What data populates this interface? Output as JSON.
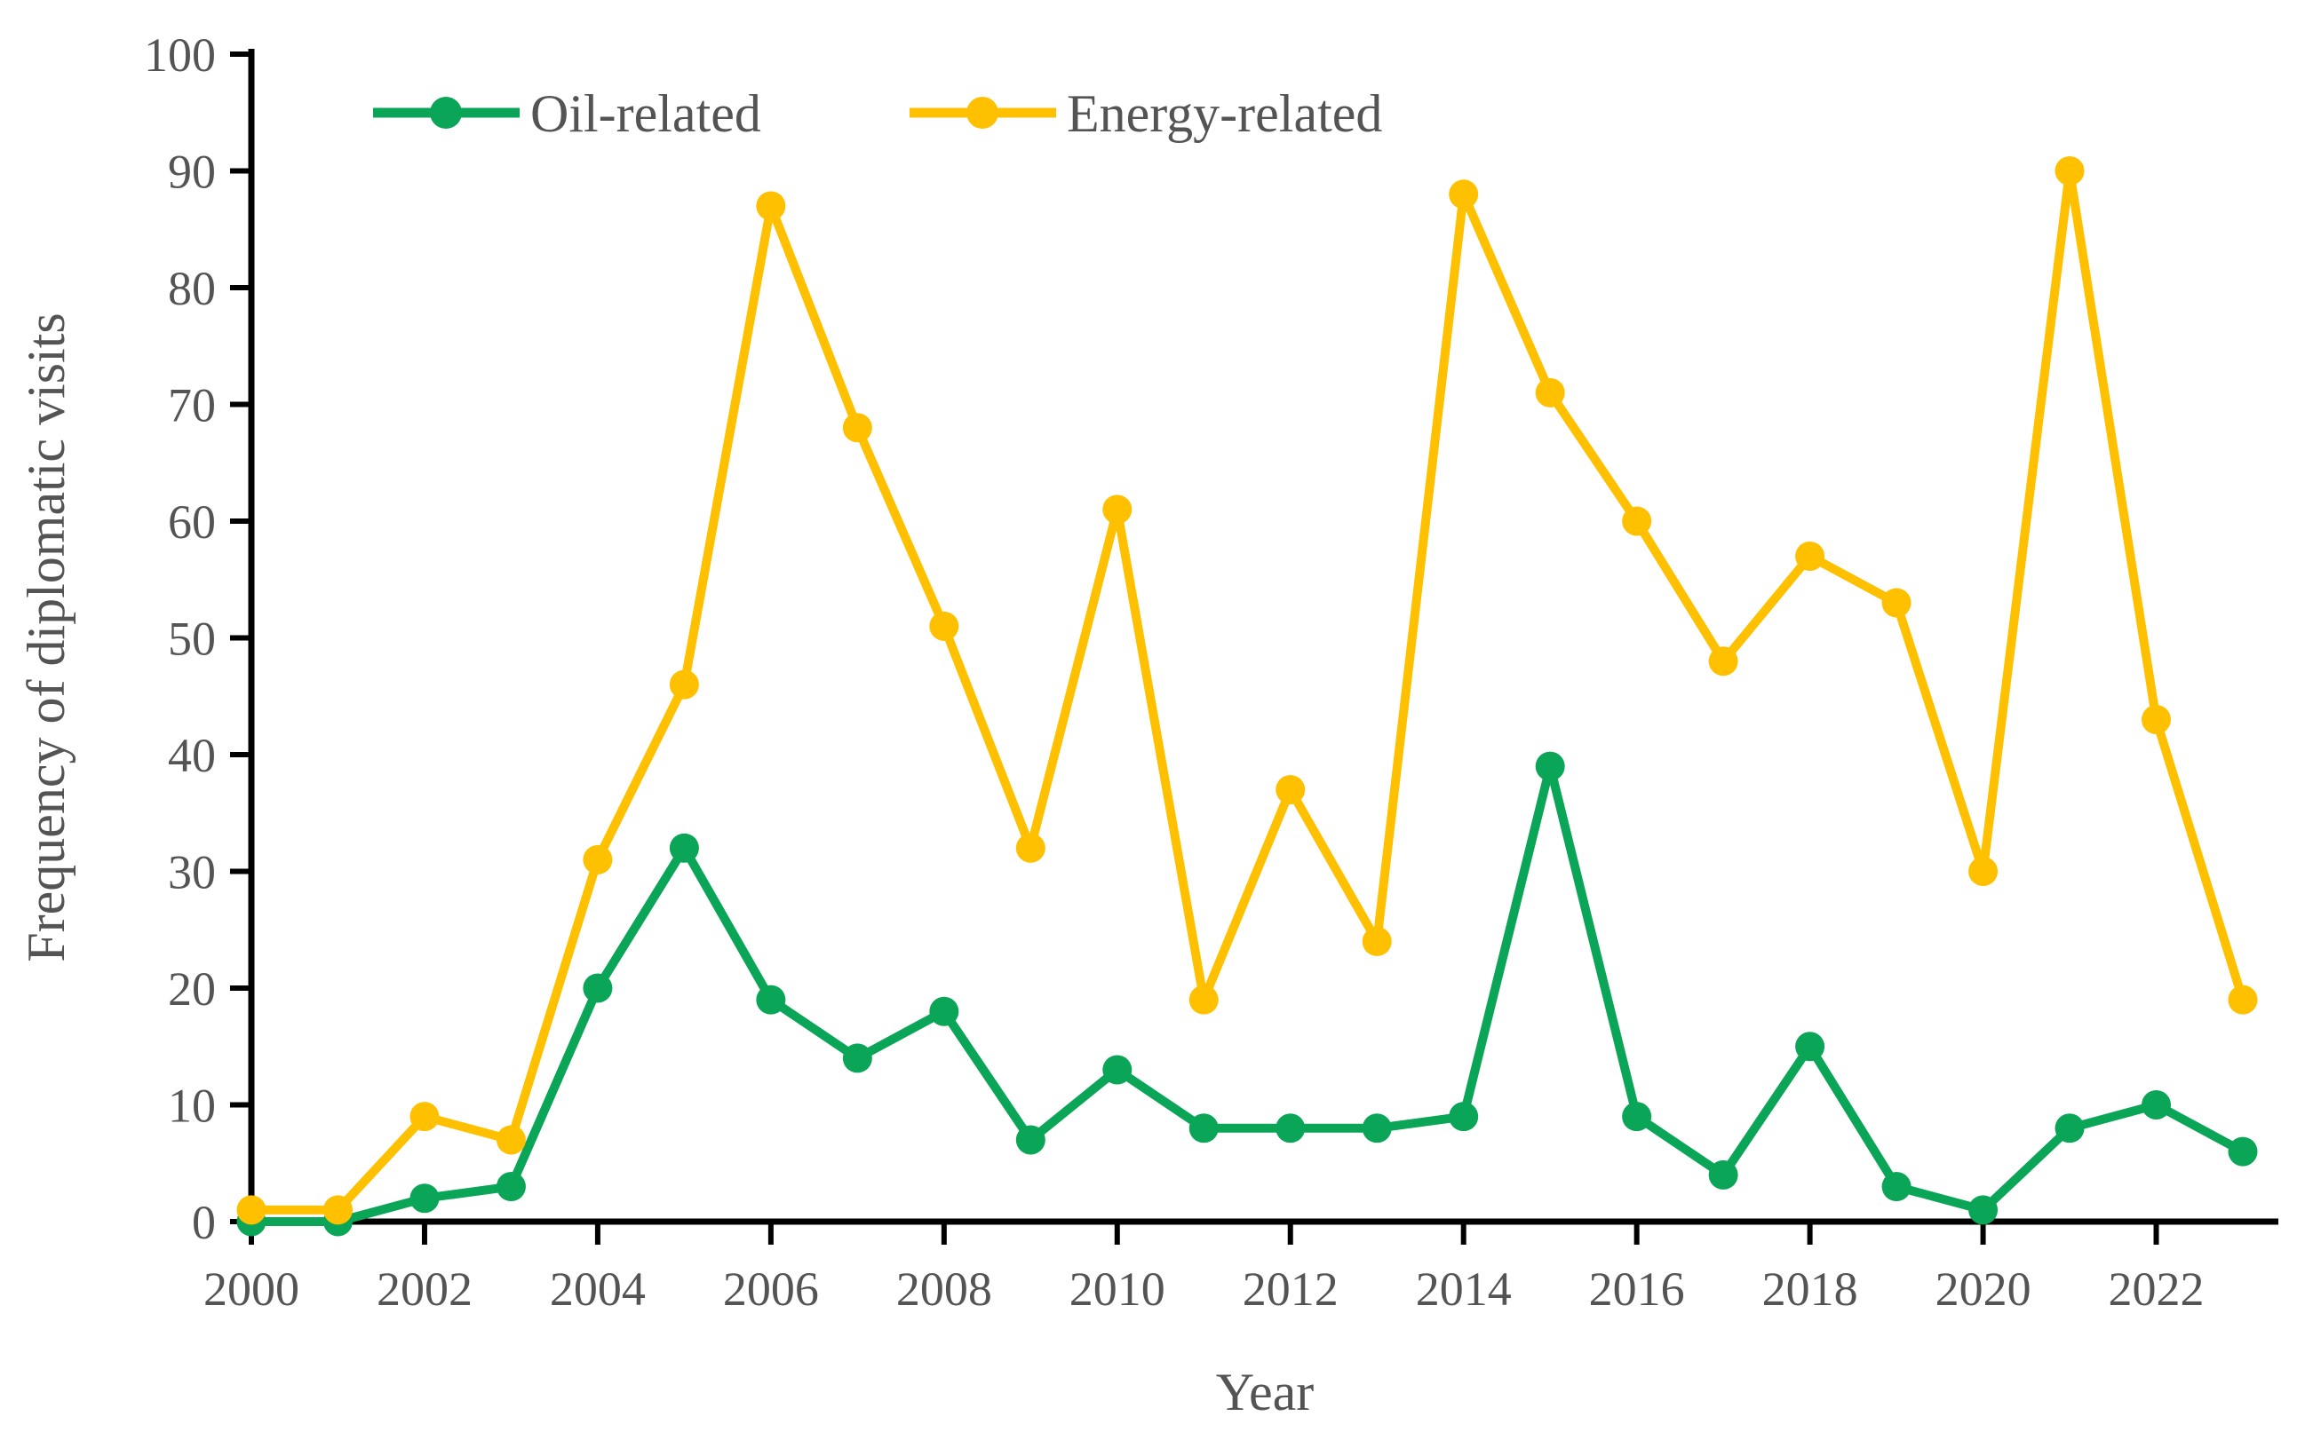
{
  "figure": {
    "background": "#ffffff",
    "text_color": "#545454",
    "axis_color": "#000000"
  },
  "chart_data": {
    "type": "line",
    "title": "",
    "xlabel": "Year",
    "ylabel": "Frequency of diplomatic visits",
    "x": [
      2000,
      2001,
      2002,
      2003,
      2004,
      2005,
      2006,
      2007,
      2008,
      2009,
      2010,
      2011,
      2012,
      2013,
      2014,
      2015,
      2016,
      2017,
      2018,
      2019,
      2020,
      2021,
      2022,
      2023
    ],
    "x_tick_years": [
      2000,
      2002,
      2004,
      2006,
      2008,
      2010,
      2012,
      2014,
      2016,
      2018,
      2020,
      2022
    ],
    "y_ticks": [
      0,
      10,
      20,
      30,
      40,
      50,
      60,
      70,
      80,
      90,
      100
    ],
    "xlim": [
      2000,
      2023
    ],
    "ylim": [
      0,
      100
    ],
    "grid": false,
    "legend_position": "top-center",
    "marker": "circle",
    "series": [
      {
        "name": "Oil-related",
        "color": "#0AA557",
        "values": [
          0,
          0,
          2,
          3,
          20,
          32,
          19,
          14,
          18,
          7,
          13,
          8,
          8,
          8,
          9,
          39,
          9,
          4,
          15,
          3,
          1,
          8,
          10,
          6
        ]
      },
      {
        "name": "Energy-related",
        "color": "#FFC000",
        "values": [
          1,
          1,
          9,
          7,
          31,
          46,
          87,
          68,
          51,
          32,
          61,
          19,
          37,
          24,
          88,
          71,
          60,
          48,
          57,
          53,
          30,
          90,
          43,
          19
        ]
      }
    ]
  }
}
